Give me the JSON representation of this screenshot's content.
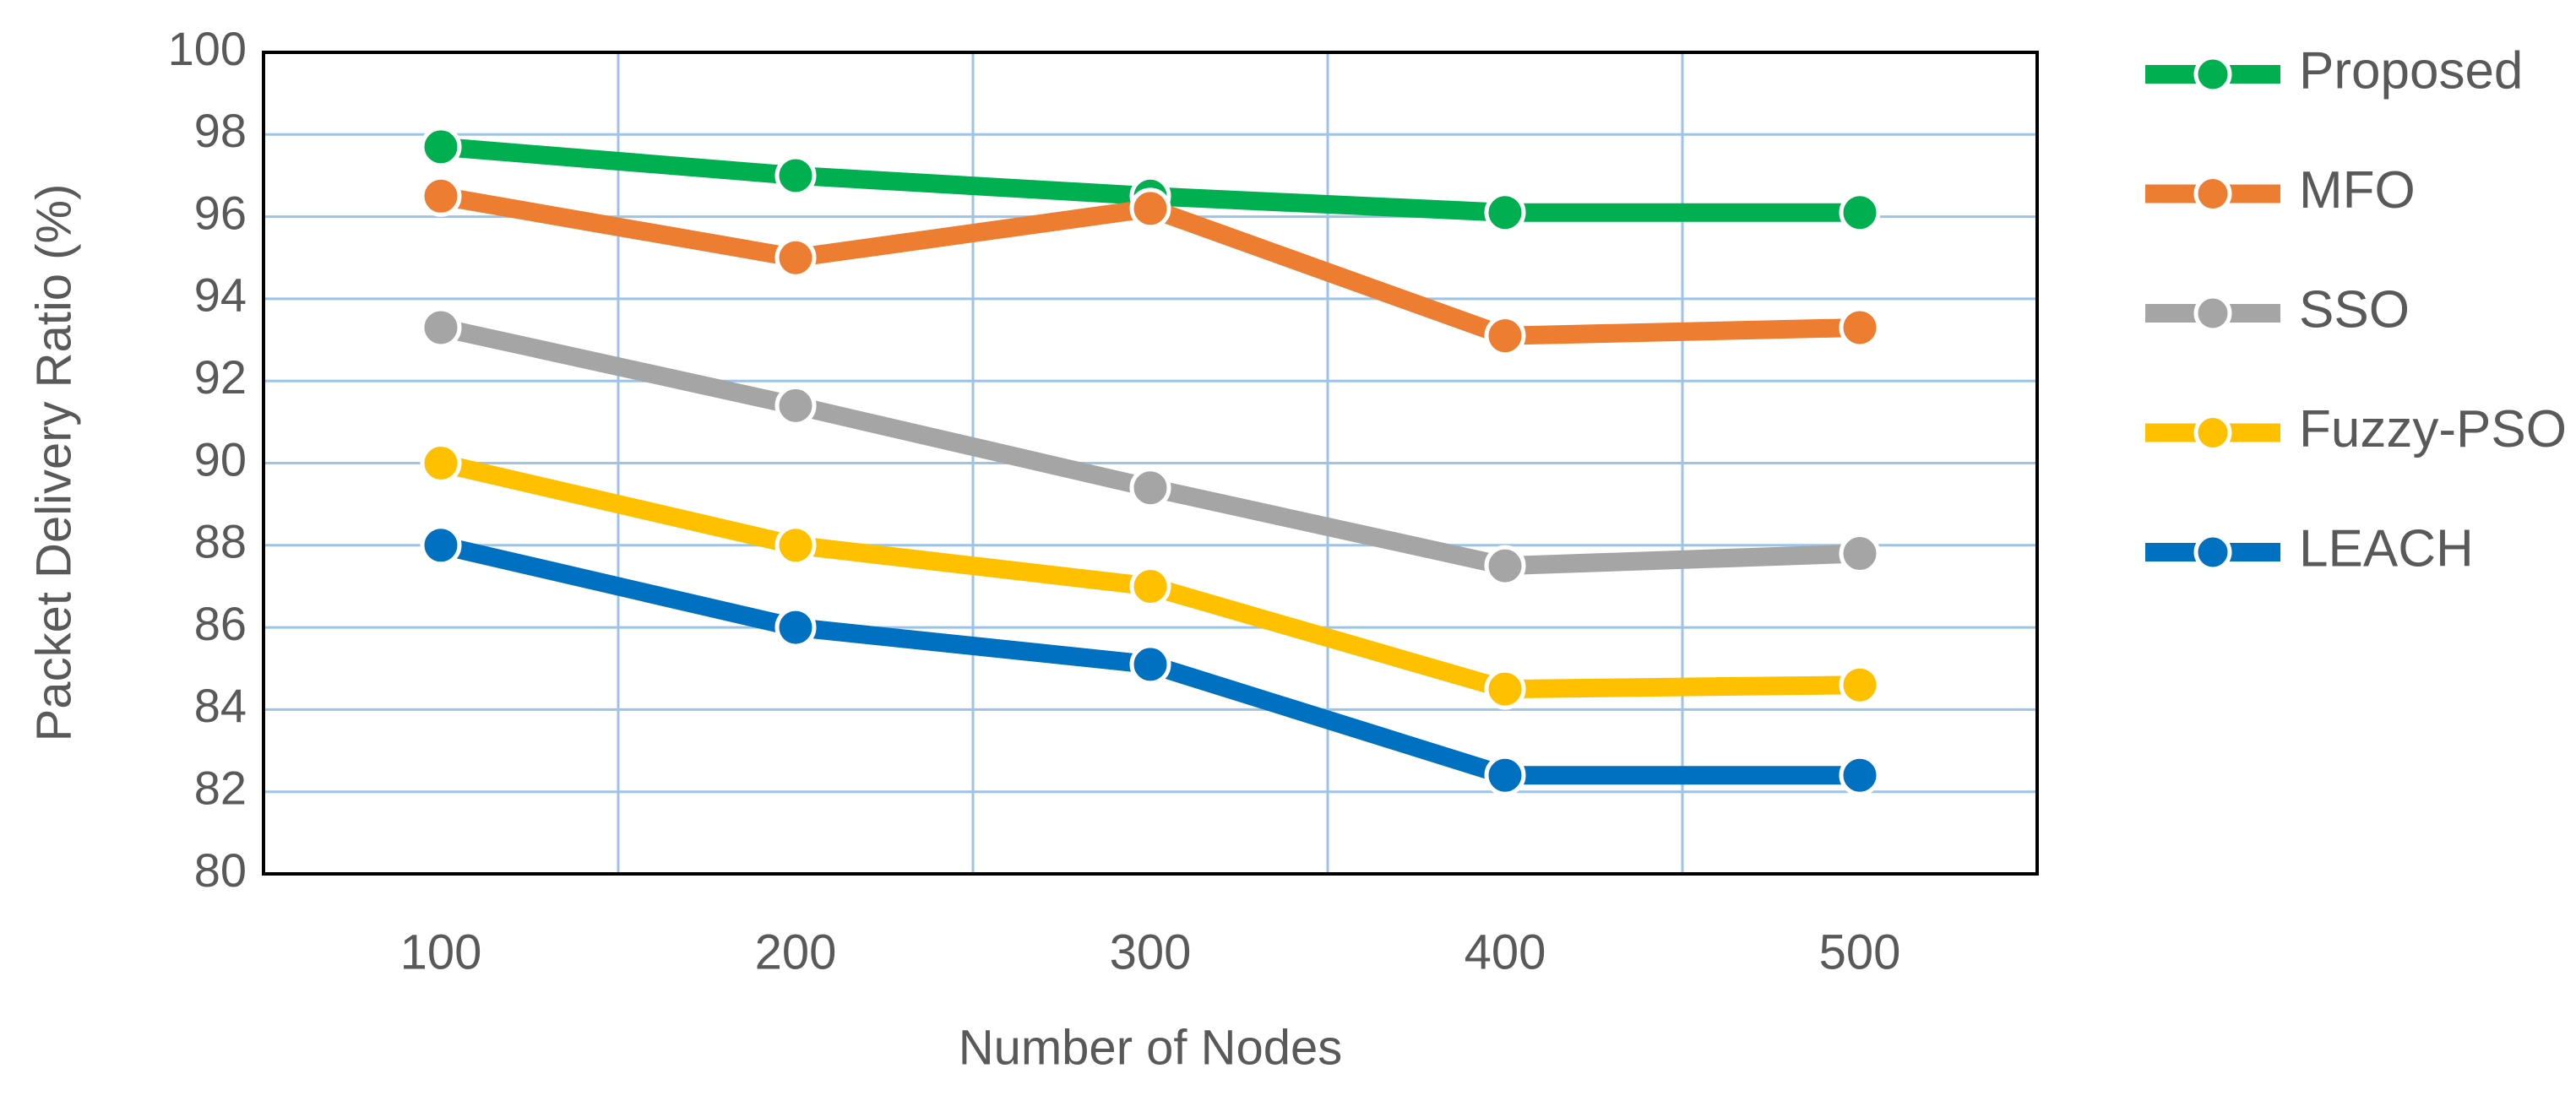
{
  "chart_data": {
    "type": "line",
    "categories": [
      "100",
      "200",
      "300",
      "400",
      "500"
    ],
    "x_label": "Number of Nodes",
    "y_label": "Packet Delivery Ratio (%)",
    "ylim": [
      80,
      100
    ],
    "yticks": [
      80,
      82,
      84,
      86,
      88,
      90,
      92,
      94,
      96,
      98,
      100
    ],
    "grid": true,
    "legend": "right",
    "series": [
      {
        "name": "Proposed",
        "color": "#00b050",
        "values": [
          97.7,
          97.0,
          96.5,
          96.1,
          96.1
        ]
      },
      {
        "name": "MFO",
        "color": "#ed7d31",
        "values": [
          96.5,
          95.0,
          96.2,
          93.1,
          93.3
        ]
      },
      {
        "name": "SSO",
        "color": "#a5a5a5",
        "values": [
          93.3,
          91.4,
          89.4,
          87.5,
          87.8
        ]
      },
      {
        "name": "Fuzzy-PSO",
        "color": "#ffc000",
        "values": [
          90.0,
          88.0,
          87.0,
          84.5,
          84.6
        ]
      },
      {
        "name": "LEACH",
        "color": "#0070c0",
        "values": [
          88.0,
          86.0,
          85.1,
          82.4,
          82.4
        ]
      }
    ]
  }
}
